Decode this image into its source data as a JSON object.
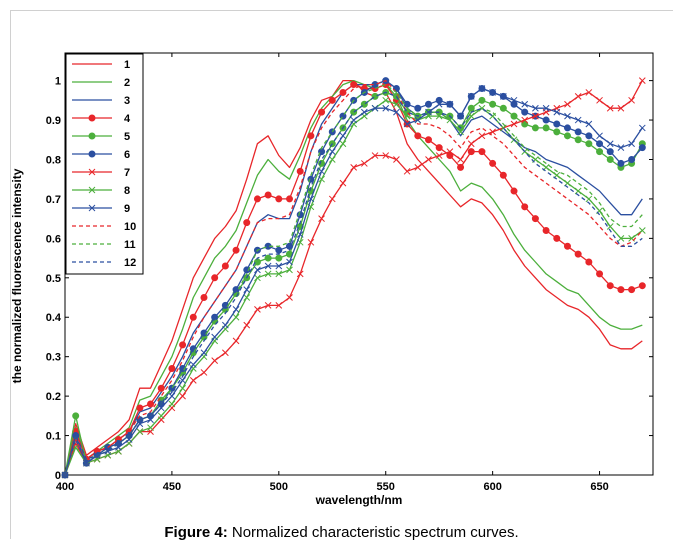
{
  "caption": {
    "label": "Figure 4:",
    "text": " Normalized characteristic spectrum curves."
  },
  "chart_data": {
    "type": "line",
    "xlabel": "wavelength/nm",
    "ylabel": "the normalized fluorescence intensity",
    "xlim": [
      400,
      675
    ],
    "ylim": [
      0,
      1.07
    ],
    "xticks": [
      400,
      450,
      500,
      550,
      600,
      650
    ],
    "yticks": [
      0,
      0.1,
      0.2,
      0.3,
      0.4,
      0.5,
      0.6,
      0.7,
      0.8,
      0.9,
      1
    ],
    "grid": false,
    "legend_position": "top-left",
    "x": [
      400,
      405,
      410,
      415,
      420,
      425,
      430,
      435,
      440,
      445,
      450,
      455,
      460,
      465,
      470,
      475,
      480,
      485,
      490,
      495,
      500,
      505,
      510,
      515,
      520,
      525,
      530,
      535,
      540,
      545,
      550,
      555,
      560,
      565,
      570,
      575,
      580,
      585,
      590,
      595,
      600,
      605,
      610,
      615,
      620,
      625,
      630,
      635,
      640,
      645,
      650,
      655,
      660,
      665,
      670
    ],
    "series": [
      {
        "name": "1",
        "color": "#e8262a",
        "dash": "solid",
        "marker": "none",
        "values": [
          0,
          0.13,
          0.05,
          0.07,
          0.09,
          0.11,
          0.14,
          0.22,
          0.22,
          0.28,
          0.34,
          0.42,
          0.5,
          0.55,
          0.6,
          0.63,
          0.67,
          0.75,
          0.84,
          0.86,
          0.81,
          0.78,
          0.83,
          0.9,
          0.95,
          0.96,
          1.0,
          1.0,
          0.97,
          0.96,
          0.97,
          0.92,
          0.84,
          0.8,
          0.77,
          0.74,
          0.71,
          0.68,
          0.7,
          0.69,
          0.66,
          0.62,
          0.57,
          0.53,
          0.5,
          0.47,
          0.45,
          0.43,
          0.42,
          0.4,
          0.37,
          0.33,
          0.32,
          0.32,
          0.34
        ]
      },
      {
        "name": "2",
        "color": "#4caf3c",
        "dash": "solid",
        "marker": "none",
        "values": [
          0,
          0.12,
          0.04,
          0.06,
          0.08,
          0.1,
          0.12,
          0.19,
          0.2,
          0.25,
          0.3,
          0.37,
          0.45,
          0.5,
          0.55,
          0.58,
          0.62,
          0.69,
          0.76,
          0.8,
          0.77,
          0.75,
          0.81,
          0.88,
          0.93,
          0.96,
          0.99,
          1.0,
          0.99,
          0.98,
          0.99,
          0.96,
          0.9,
          0.86,
          0.83,
          0.8,
          0.77,
          0.72,
          0.74,
          0.73,
          0.7,
          0.66,
          0.61,
          0.57,
          0.54,
          0.51,
          0.49,
          0.47,
          0.46,
          0.43,
          0.4,
          0.38,
          0.37,
          0.37,
          0.38
        ]
      },
      {
        "name": "3",
        "color": "#2b4fa0",
        "dash": "solid",
        "marker": "none",
        "values": [
          0,
          0.11,
          0.04,
          0.06,
          0.07,
          0.09,
          0.11,
          0.16,
          0.17,
          0.21,
          0.25,
          0.3,
          0.36,
          0.4,
          0.44,
          0.48,
          0.52,
          0.58,
          0.64,
          0.66,
          0.65,
          0.65,
          0.72,
          0.82,
          0.89,
          0.93,
          0.97,
          0.99,
          0.99,
          0.99,
          1.0,
          0.98,
          0.93,
          0.91,
          0.92,
          0.92,
          0.9,
          0.86,
          0.9,
          0.91,
          0.89,
          0.87,
          0.85,
          0.83,
          0.82,
          0.8,
          0.79,
          0.78,
          0.76,
          0.74,
          0.72,
          0.69,
          0.66,
          0.66,
          0.7
        ]
      },
      {
        "name": "4",
        "color": "#e8262a",
        "dash": "solid",
        "marker": "dot",
        "values": [
          0,
          0.11,
          0.04,
          0.06,
          0.07,
          0.09,
          0.11,
          0.17,
          0.18,
          0.22,
          0.27,
          0.33,
          0.4,
          0.45,
          0.5,
          0.53,
          0.57,
          0.64,
          0.7,
          0.71,
          0.7,
          0.7,
          0.77,
          0.86,
          0.92,
          0.95,
          0.97,
          0.99,
          0.98,
          0.98,
          0.99,
          0.95,
          0.89,
          0.86,
          0.85,
          0.83,
          0.81,
          0.78,
          0.82,
          0.82,
          0.79,
          0.76,
          0.72,
          0.68,
          0.65,
          0.62,
          0.6,
          0.58,
          0.56,
          0.54,
          0.51,
          0.48,
          0.47,
          0.47,
          0.48
        ]
      },
      {
        "name": "5",
        "color": "#4caf3c",
        "dash": "solid",
        "marker": "dot",
        "values": [
          0,
          0.15,
          0.03,
          0.05,
          0.07,
          0.08,
          0.1,
          0.14,
          0.15,
          0.19,
          0.22,
          0.26,
          0.31,
          0.35,
          0.39,
          0.42,
          0.46,
          0.5,
          0.54,
          0.55,
          0.55,
          0.56,
          0.63,
          0.72,
          0.79,
          0.84,
          0.88,
          0.92,
          0.94,
          0.96,
          0.97,
          0.96,
          0.92,
          0.91,
          0.92,
          0.92,
          0.91,
          0.88,
          0.93,
          0.95,
          0.94,
          0.93,
          0.91,
          0.89,
          0.88,
          0.88,
          0.87,
          0.86,
          0.85,
          0.84,
          0.82,
          0.8,
          0.78,
          0.79,
          0.84
        ]
      },
      {
        "name": "6",
        "color": "#2b4fa0",
        "dash": "solid",
        "marker": "dot",
        "values": [
          0,
          0.1,
          0.03,
          0.05,
          0.07,
          0.08,
          0.1,
          0.14,
          0.15,
          0.18,
          0.22,
          0.27,
          0.32,
          0.36,
          0.4,
          0.43,
          0.47,
          0.52,
          0.57,
          0.58,
          0.57,
          0.58,
          0.66,
          0.75,
          0.82,
          0.87,
          0.91,
          0.95,
          0.97,
          0.99,
          1.0,
          0.98,
          0.94,
          0.93,
          0.94,
          0.95,
          0.94,
          0.91,
          0.96,
          0.98,
          0.97,
          0.96,
          0.94,
          0.92,
          0.91,
          0.9,
          0.89,
          0.88,
          0.87,
          0.86,
          0.84,
          0.82,
          0.79,
          0.8,
          0.83
        ]
      },
      {
        "name": "7",
        "color": "#e8262a",
        "dash": "solid",
        "marker": "x",
        "values": [
          0,
          0.08,
          0.03,
          0.04,
          0.05,
          0.06,
          0.08,
          0.11,
          0.11,
          0.14,
          0.17,
          0.2,
          0.24,
          0.26,
          0.29,
          0.31,
          0.34,
          0.38,
          0.42,
          0.43,
          0.43,
          0.45,
          0.51,
          0.59,
          0.65,
          0.7,
          0.74,
          0.78,
          0.79,
          0.81,
          0.81,
          0.8,
          0.77,
          0.78,
          0.8,
          0.81,
          0.82,
          0.8,
          0.84,
          0.86,
          0.87,
          0.88,
          0.89,
          0.9,
          0.91,
          0.92,
          0.93,
          0.94,
          0.96,
          0.97,
          0.95,
          0.93,
          0.93,
          0.95,
          1.0
        ]
      },
      {
        "name": "8",
        "color": "#4caf3c",
        "dash": "solid",
        "marker": "x",
        "values": [
          0,
          0.07,
          0.03,
          0.04,
          0.05,
          0.06,
          0.08,
          0.11,
          0.12,
          0.15,
          0.18,
          0.22,
          0.27,
          0.3,
          0.34,
          0.37,
          0.4,
          0.45,
          0.5,
          0.51,
          0.51,
          0.52,
          0.59,
          0.68,
          0.75,
          0.8,
          0.84,
          0.89,
          0.91,
          0.93,
          0.95,
          0.94,
          0.91,
          0.9,
          0.91,
          0.91,
          0.9,
          0.87,
          0.91,
          0.93,
          0.91,
          0.88,
          0.85,
          0.82,
          0.8,
          0.78,
          0.76,
          0.74,
          0.72,
          0.7,
          0.67,
          0.63,
          0.6,
          0.6,
          0.62
        ]
      },
      {
        "name": "9",
        "color": "#2b4fa0",
        "dash": "solid",
        "marker": "x",
        "values": [
          0,
          0.09,
          0.03,
          0.05,
          0.06,
          0.07,
          0.09,
          0.13,
          0.14,
          0.17,
          0.2,
          0.24,
          0.28,
          0.31,
          0.35,
          0.38,
          0.42,
          0.47,
          0.52,
          0.53,
          0.53,
          0.54,
          0.61,
          0.7,
          0.77,
          0.82,
          0.86,
          0.9,
          0.92,
          0.93,
          0.93,
          0.92,
          0.89,
          0.9,
          0.92,
          0.94,
          0.94,
          0.91,
          0.96,
          0.98,
          0.97,
          0.96,
          0.95,
          0.94,
          0.93,
          0.93,
          0.92,
          0.91,
          0.9,
          0.89,
          0.86,
          0.84,
          0.83,
          0.84,
          0.88
        ]
      },
      {
        "name": "10",
        "color": "#e8262a",
        "dash": "dash",
        "marker": "none",
        "values": [
          0,
          0.09,
          0.04,
          0.06,
          0.07,
          0.09,
          0.11,
          0.15,
          0.16,
          0.2,
          0.24,
          0.29,
          0.35,
          0.4,
          0.44,
          0.48,
          0.52,
          0.58,
          0.64,
          0.65,
          0.65,
          0.66,
          0.73,
          0.82,
          0.88,
          0.92,
          0.95,
          0.98,
          0.99,
          0.99,
          1.0,
          0.97,
          0.92,
          0.89,
          0.89,
          0.88,
          0.86,
          0.83,
          0.87,
          0.88,
          0.86,
          0.84,
          0.81,
          0.78,
          0.76,
          0.74,
          0.72,
          0.7,
          0.68,
          0.66,
          0.63,
          0.6,
          0.58,
          0.59,
          0.62
        ]
      },
      {
        "name": "11",
        "color": "#4caf3c",
        "dash": "dash",
        "marker": "none",
        "values": [
          0,
          0.1,
          0.04,
          0.05,
          0.06,
          0.08,
          0.1,
          0.14,
          0.15,
          0.18,
          0.22,
          0.26,
          0.31,
          0.35,
          0.39,
          0.42,
          0.46,
          0.51,
          0.57,
          0.58,
          0.58,
          0.59,
          0.67,
          0.76,
          0.83,
          0.87,
          0.91,
          0.95,
          0.97,
          0.98,
          0.99,
          0.97,
          0.93,
          0.91,
          0.92,
          0.92,
          0.9,
          0.87,
          0.92,
          0.93,
          0.92,
          0.89,
          0.86,
          0.83,
          0.81,
          0.79,
          0.77,
          0.76,
          0.74,
          0.72,
          0.69,
          0.65,
          0.63,
          0.63,
          0.66
        ]
      },
      {
        "name": "12",
        "color": "#2b4fa0",
        "dash": "dash",
        "marker": "none",
        "values": [
          0,
          0.1,
          0.04,
          0.05,
          0.06,
          0.08,
          0.1,
          0.14,
          0.15,
          0.18,
          0.21,
          0.25,
          0.3,
          0.34,
          0.38,
          0.41,
          0.45,
          0.5,
          0.55,
          0.56,
          0.56,
          0.57,
          0.64,
          0.73,
          0.8,
          0.84,
          0.88,
          0.92,
          0.94,
          0.96,
          0.97,
          0.96,
          0.92,
          0.91,
          0.92,
          0.92,
          0.91,
          0.88,
          0.92,
          0.93,
          0.91,
          0.88,
          0.85,
          0.82,
          0.79,
          0.77,
          0.75,
          0.73,
          0.71,
          0.69,
          0.66,
          0.62,
          0.58,
          0.58,
          0.6
        ]
      }
    ]
  }
}
